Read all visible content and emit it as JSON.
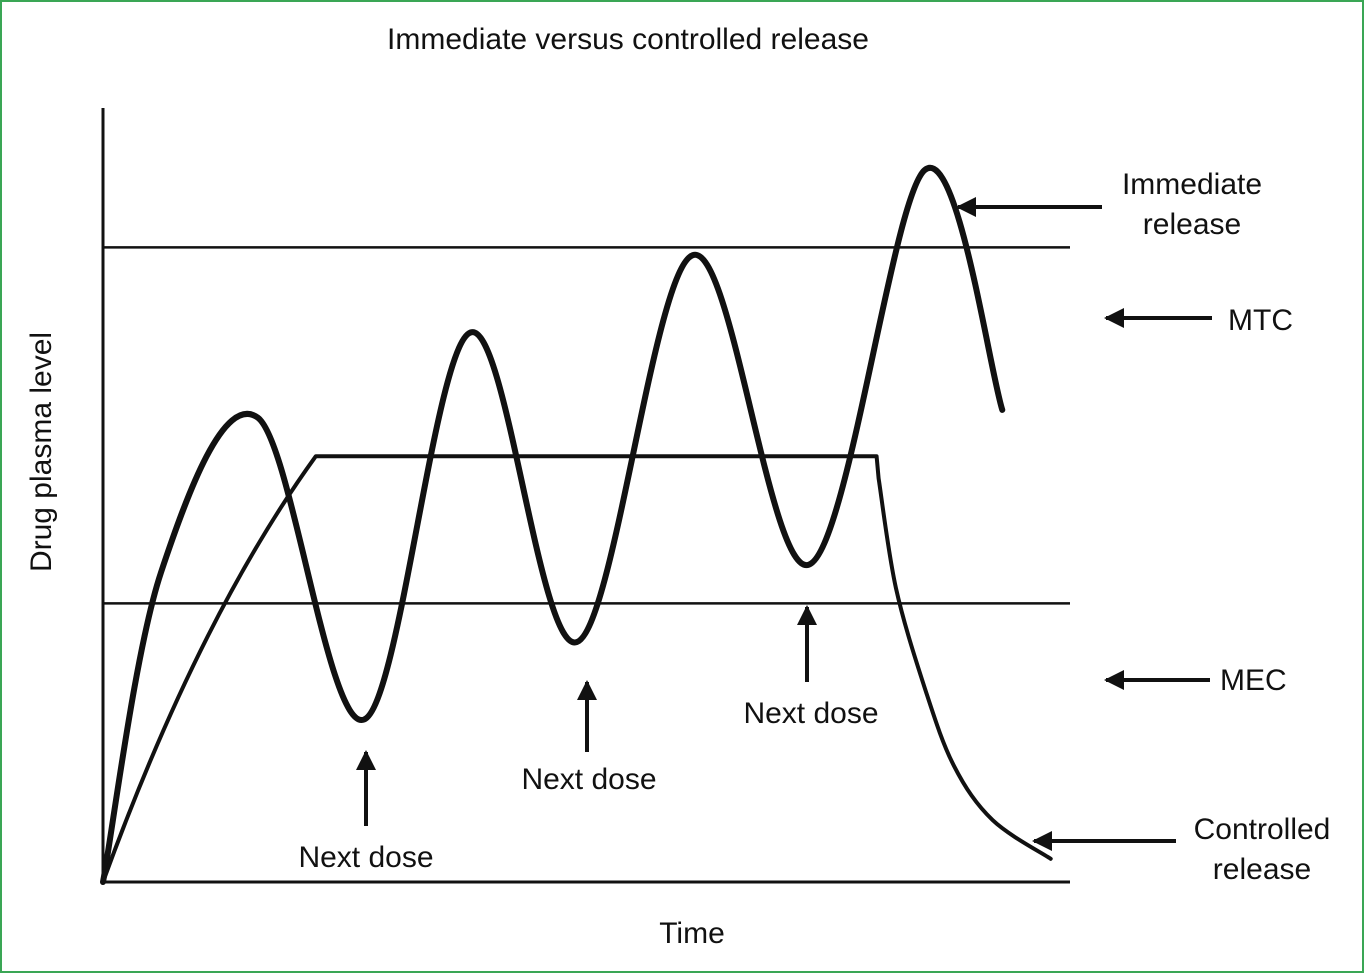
{
  "chart_data": {
    "type": "line",
    "title": "Immediate versus controlled release",
    "xlabel": "Time",
    "ylabel": "Drug plasma level",
    "grid": false,
    "reference_lines": [
      {
        "name": "MTC",
        "y": 82
      },
      {
        "name": "MEC",
        "y": 36
      }
    ],
    "series": [
      {
        "name": "Immediate release",
        "x": [
          0,
          6,
          16,
          27,
          38,
          49,
          61,
          73,
          85,
          93
        ],
        "y": [
          0,
          40,
          60,
          21,
          71,
          31,
          81,
          41,
          92,
          61
        ]
      },
      {
        "name": "Controlled release",
        "x": [
          0,
          22,
          80,
          82,
          85,
          88,
          92,
          98
        ],
        "y": [
          0,
          55,
          55,
          38,
          25,
          15,
          8,
          3
        ]
      }
    ],
    "annotations": [
      {
        "text": "Immediate release",
        "line1": "Immediate",
        "line2": "release"
      },
      {
        "text": "MTC"
      },
      {
        "text": "MEC"
      },
      {
        "text": "Controlled release",
        "line1": "Controlled",
        "line2": "release"
      },
      {
        "text": "Next dose"
      },
      {
        "text": "Next dose"
      },
      {
        "text": "Next dose"
      }
    ],
    "xlim": [
      0,
      100
    ],
    "ylim": [
      0,
      100
    ],
    "color": "#111111",
    "frame_color": "#3aa655"
  }
}
